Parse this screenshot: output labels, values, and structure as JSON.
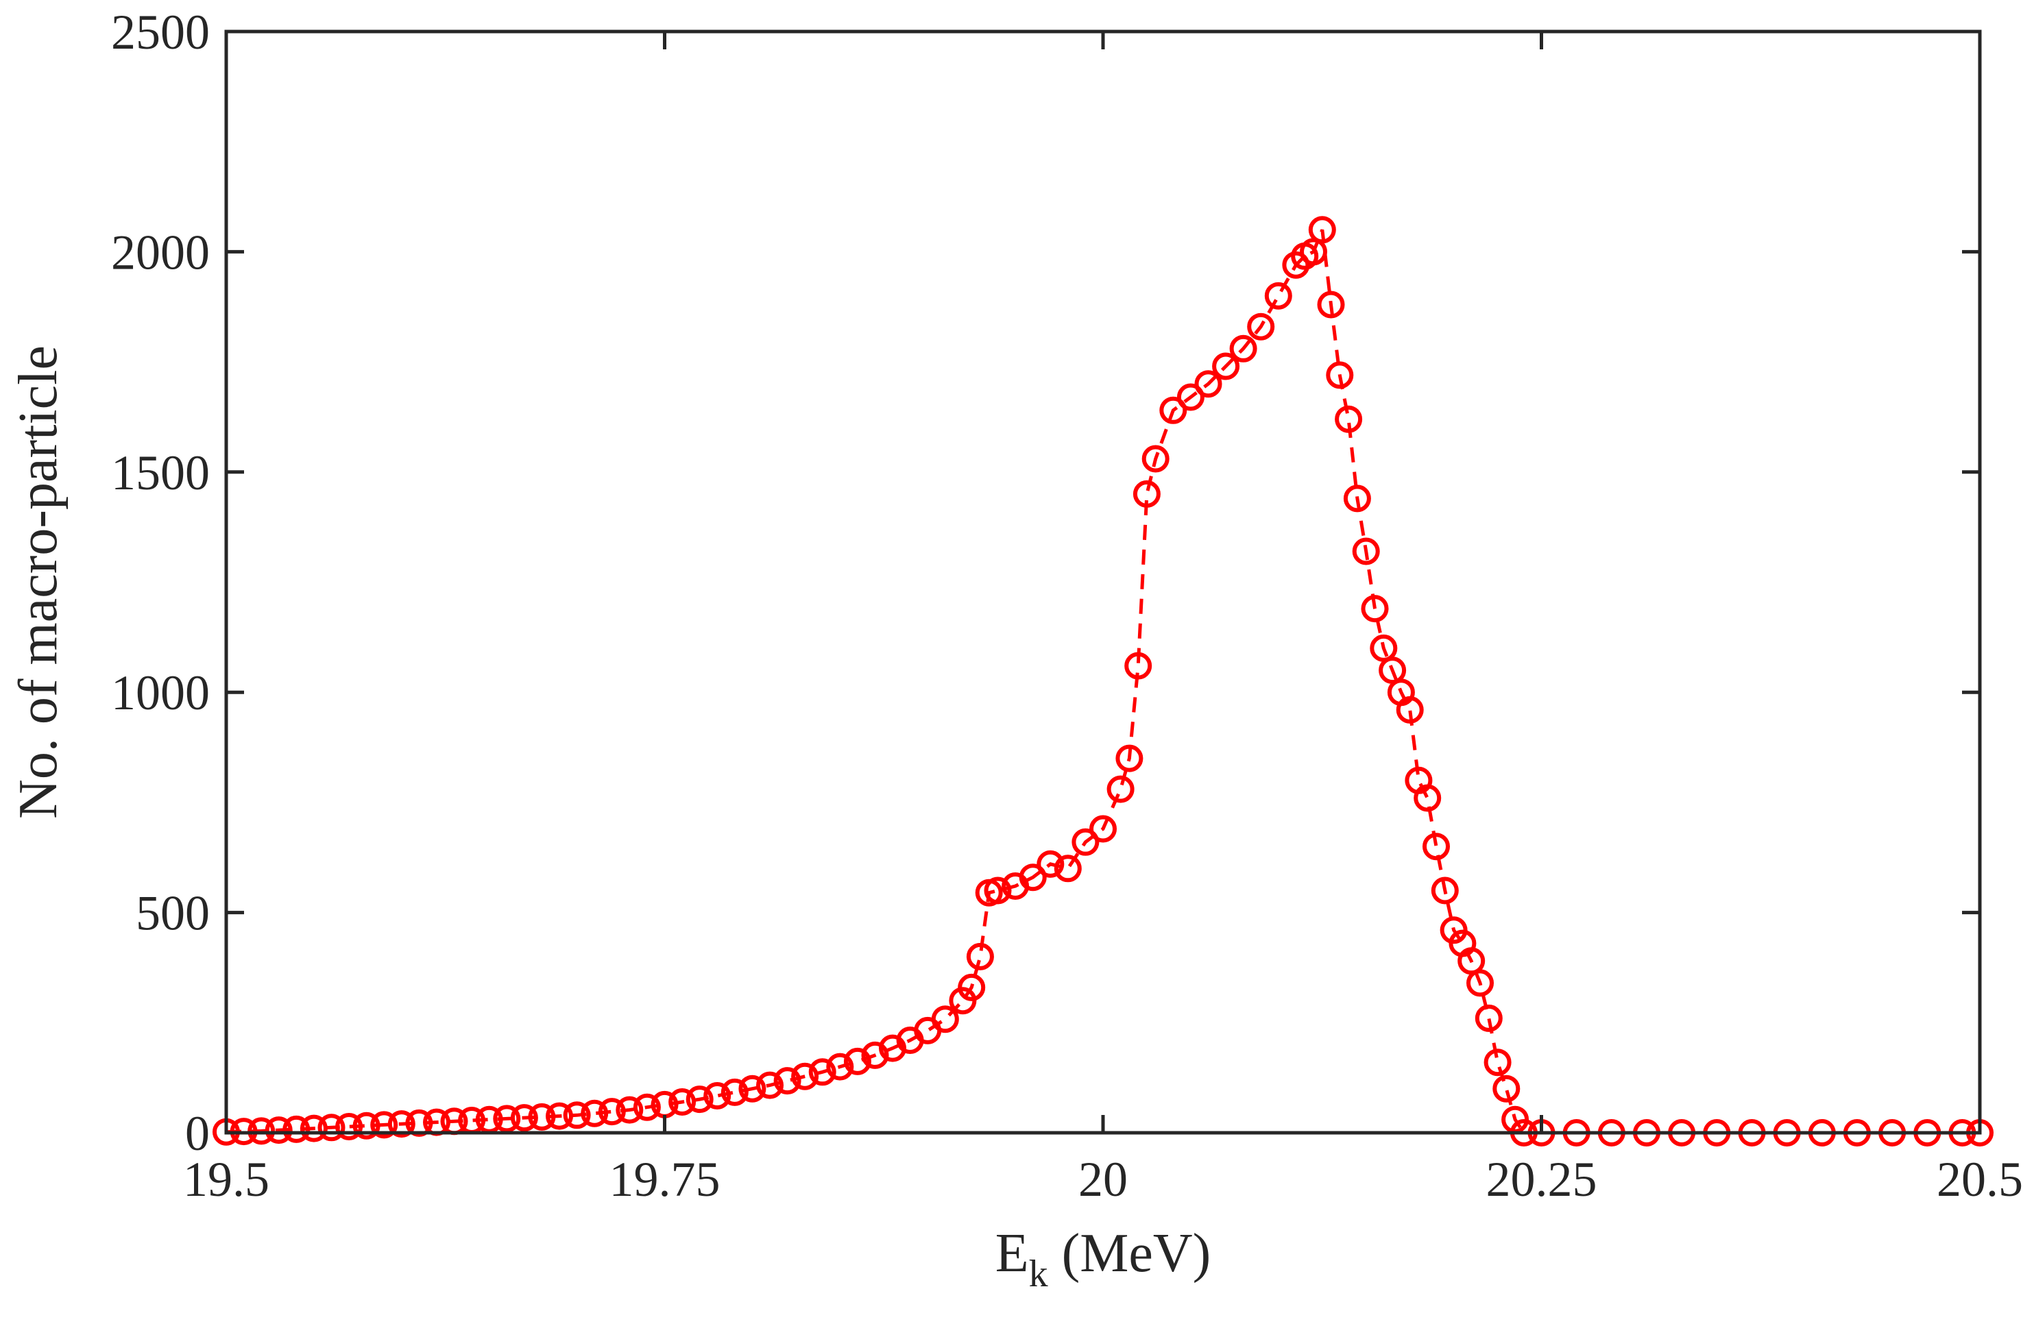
{
  "chart_data": {
    "type": "line",
    "title": "",
    "xlabel": "E",
    "xlabel_subscript": "k",
    "xlabel_unit": " (MeV)",
    "ylabel": "No. of macro-particle",
    "xlim": [
      19.5,
      20.5
    ],
    "ylim": [
      0,
      2500
    ],
    "xticks": [
      19.5,
      19.75,
      20,
      20.25,
      20.5
    ],
    "xtick_labels": [
      "19.5",
      "19.75",
      "20",
      "20.25",
      "20.5"
    ],
    "yticks": [
      0,
      500,
      1000,
      1500,
      2000,
      2500
    ],
    "ytick_labels": [
      "0",
      "500",
      "1000",
      "1500",
      "2000",
      "2500"
    ],
    "grid": false,
    "legend": "none",
    "series": [
      {
        "name": "macro-particles",
        "color": "#ff0000",
        "line_style": "dashed",
        "marker": "open-circle",
        "points": [
          [
            19.5,
            2
          ],
          [
            19.51,
            3
          ],
          [
            19.52,
            4
          ],
          [
            19.53,
            6
          ],
          [
            19.54,
            8
          ],
          [
            19.55,
            10
          ],
          [
            19.56,
            12
          ],
          [
            19.57,
            14
          ],
          [
            19.58,
            16
          ],
          [
            19.59,
            18
          ],
          [
            19.6,
            20
          ],
          [
            19.61,
            22
          ],
          [
            19.62,
            24
          ],
          [
            19.63,
            26
          ],
          [
            19.64,
            28
          ],
          [
            19.65,
            30
          ],
          [
            19.66,
            32
          ],
          [
            19.67,
            34
          ],
          [
            19.68,
            36
          ],
          [
            19.69,
            38
          ],
          [
            19.7,
            40
          ],
          [
            19.71,
            44
          ],
          [
            19.72,
            48
          ],
          [
            19.73,
            52
          ],
          [
            19.74,
            58
          ],
          [
            19.75,
            64
          ],
          [
            19.76,
            70
          ],
          [
            19.77,
            76
          ],
          [
            19.78,
            84
          ],
          [
            19.79,
            92
          ],
          [
            19.8,
            100
          ],
          [
            19.81,
            108
          ],
          [
            19.82,
            118
          ],
          [
            19.83,
            128
          ],
          [
            19.84,
            138
          ],
          [
            19.85,
            150
          ],
          [
            19.86,
            162
          ],
          [
            19.87,
            176
          ],
          [
            19.88,
            192
          ],
          [
            19.89,
            210
          ],
          [
            19.9,
            232
          ],
          [
            19.91,
            258
          ],
          [
            19.92,
            300
          ],
          [
            19.925,
            330
          ],
          [
            19.93,
            400
          ],
          [
            19.935,
            545
          ],
          [
            19.94,
            550
          ],
          [
            19.95,
            560
          ],
          [
            19.96,
            580
          ],
          [
            19.97,
            610
          ],
          [
            19.98,
            600
          ],
          [
            19.99,
            660
          ],
          [
            20.0,
            690
          ],
          [
            20.01,
            780
          ],
          [
            20.015,
            850
          ],
          [
            20.02,
            1060
          ],
          [
            20.025,
            1450
          ],
          [
            20.03,
            1530
          ],
          [
            20.04,
            1640
          ],
          [
            20.05,
            1670
          ],
          [
            20.06,
            1700
          ],
          [
            20.07,
            1740
          ],
          [
            20.08,
            1780
          ],
          [
            20.09,
            1830
          ],
          [
            20.1,
            1900
          ],
          [
            20.11,
            1970
          ],
          [
            20.115,
            1990
          ],
          [
            20.12,
            2000
          ],
          [
            20.125,
            2050
          ],
          [
            20.13,
            1880
          ],
          [
            20.135,
            1720
          ],
          [
            20.14,
            1620
          ],
          [
            20.145,
            1440
          ],
          [
            20.15,
            1320
          ],
          [
            20.155,
            1190
          ],
          [
            20.16,
            1100
          ],
          [
            20.165,
            1050
          ],
          [
            20.17,
            1000
          ],
          [
            20.175,
            960
          ],
          [
            20.18,
            800
          ],
          [
            20.185,
            760
          ],
          [
            20.19,
            650
          ],
          [
            20.195,
            550
          ],
          [
            20.2,
            460
          ],
          [
            20.205,
            430
          ],
          [
            20.21,
            390
          ],
          [
            20.215,
            340
          ],
          [
            20.22,
            260
          ],
          [
            20.225,
            160
          ],
          [
            20.23,
            100
          ],
          [
            20.235,
            30
          ],
          [
            20.24,
            0
          ],
          [
            20.25,
            0
          ],
          [
            20.27,
            0
          ],
          [
            20.29,
            0
          ],
          [
            20.31,
            0
          ],
          [
            20.33,
            0
          ],
          [
            20.35,
            0
          ],
          [
            20.37,
            0
          ],
          [
            20.39,
            0
          ],
          [
            20.41,
            0
          ],
          [
            20.43,
            0
          ],
          [
            20.45,
            0
          ],
          [
            20.47,
            0
          ],
          [
            20.49,
            0
          ],
          [
            20.5,
            0
          ]
        ]
      }
    ]
  }
}
